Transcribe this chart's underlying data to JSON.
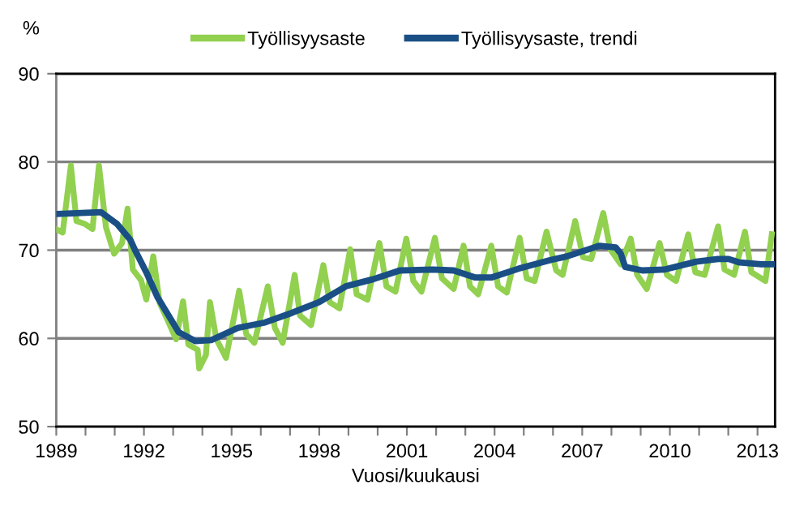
{
  "chart_data": {
    "type": "line",
    "ylabel": "%",
    "xlabel": "Vuosi/kuukausi",
    "xlim": [
      1989,
      2013.6
    ],
    "ylim": [
      50,
      90
    ],
    "yticks": [
      50,
      60,
      70,
      80,
      90
    ],
    "xticks": [
      1989,
      {
        "value": 1990,
        "label": null
      },
      {
        "value": 1991,
        "label": null
      },
      1992,
      {
        "value": 1993,
        "label": null
      },
      {
        "value": 1994,
        "label": null
      },
      1995,
      {
        "value": 1996,
        "label": null
      },
      {
        "value": 1997,
        "label": null
      },
      1998,
      {
        "value": 1999,
        "label": null
      },
      {
        "value": 2000,
        "label": null
      },
      2001,
      {
        "value": 2002,
        "label": null
      },
      {
        "value": 2003,
        "label": null
      },
      2004,
      {
        "value": 2005,
        "label": null
      },
      {
        "value": 2006,
        "label": null
      },
      2007,
      {
        "value": 2008,
        "label": null
      },
      {
        "value": 2009,
        "label": null
      },
      2010,
      {
        "value": 2011,
        "label": null
      },
      {
        "value": 2012,
        "label": null
      },
      2013
    ],
    "grid": "y",
    "legend": "top",
    "marker": "none",
    "line_style": "solid",
    "series": [
      {
        "name": "Työllisyysaste",
        "color": "#92d050",
        "x": [
          1989.04,
          1989.22,
          1989.5,
          1989.69,
          1989.96,
          1990.24,
          1990.46,
          1990.7,
          1990.98,
          1991.25,
          1991.44,
          1991.62,
          1991.9,
          1992.08,
          1992.32,
          1992.54,
          1992.82,
          1993.1,
          1993.34,
          1993.52,
          1993.84,
          1993.89,
          1994.12,
          1994.26,
          1994.48,
          1994.81,
          1995.26,
          1995.5,
          1995.78,
          1996.24,
          1996.48,
          1996.75,
          1997.16,
          1997.34,
          1997.72,
          1998.14,
          1998.36,
          1998.69,
          1999.06,
          1999.28,
          1999.65,
          2000.06,
          2000.3,
          2000.61,
          2000.98,
          2001.22,
          2001.5,
          2001.96,
          2002.2,
          2002.6,
          2002.94,
          2003.16,
          2003.44,
          2003.89,
          2004.12,
          2004.42,
          2004.86,
          2005.1,
          2005.37,
          2005.78,
          2006.11,
          2006.33,
          2006.76,
          2007.03,
          2007.31,
          2007.72,
          2007.96,
          2008.32,
          2008.66,
          2008.88,
          2009.21,
          2009.65,
          2009.9,
          2010.21,
          2010.63,
          2010.87,
          2011.19,
          2011.65,
          2011.87,
          2012.2,
          2012.57,
          2012.79,
          2013.27,
          2013.49
        ],
        "values": [
          72.3,
          72.0,
          79.6,
          73.3,
          73.0,
          72.4,
          79.6,
          72.6,
          69.6,
          70.8,
          74.7,
          67.8,
          66.6,
          64.4,
          69.3,
          64.0,
          62.0,
          59.9,
          64.2,
          59.3,
          58.7,
          56.6,
          58.1,
          64.1,
          59.9,
          57.8,
          65.4,
          60.5,
          59.5,
          65.9,
          61.2,
          59.5,
          67.2,
          62.6,
          61.5,
          68.3,
          64.1,
          63.4,
          70.1,
          65.0,
          64.4,
          70.8,
          65.9,
          65.3,
          71.3,
          66.5,
          65.3,
          71.4,
          66.8,
          65.6,
          70.5,
          65.9,
          65.0,
          70.5,
          65.9,
          65.2,
          71.4,
          66.8,
          66.5,
          72.1,
          67.7,
          67.2,
          73.3,
          69.2,
          69.0,
          74.2,
          70.1,
          68.4,
          71.3,
          67.2,
          65.6,
          70.8,
          67.2,
          66.5,
          71.8,
          67.5,
          67.2,
          72.7,
          67.8,
          67.2,
          72.1,
          67.5,
          66.5,
          71.8
        ]
      },
      {
        "name": "Työllisyysaste, trendi",
        "color": "#1a4f85",
        "x": [
          1989.04,
          1990.53,
          1991.07,
          1991.53,
          1991.71,
          1992.08,
          1992.46,
          1993.19,
          1993.75,
          1994.3,
          1995.22,
          1996.14,
          1997.07,
          1997.99,
          1998.91,
          1999.84,
          2000.76,
          2001.87,
          2002.6,
          2003.34,
          2003.89,
          2004.82,
          2005.93,
          2006.48,
          2007.22,
          2007.59,
          2008.15,
          2008.32,
          2008.47,
          2009.06,
          2009.8,
          2010.91,
          2011.65,
          2012.01,
          2012.39,
          2013.13,
          2013.49
        ],
        "values": [
          74.1,
          74.3,
          73.0,
          71.2,
          69.9,
          67.5,
          64.7,
          60.7,
          59.7,
          59.8,
          61.2,
          61.8,
          62.9,
          64.1,
          65.9,
          66.7,
          67.7,
          67.8,
          67.7,
          66.9,
          66.9,
          67.9,
          68.9,
          69.3,
          70.1,
          70.5,
          70.3,
          69.6,
          68.1,
          67.7,
          67.8,
          68.7,
          69.0,
          69.0,
          68.6,
          68.4,
          68.4
        ]
      }
    ]
  }
}
